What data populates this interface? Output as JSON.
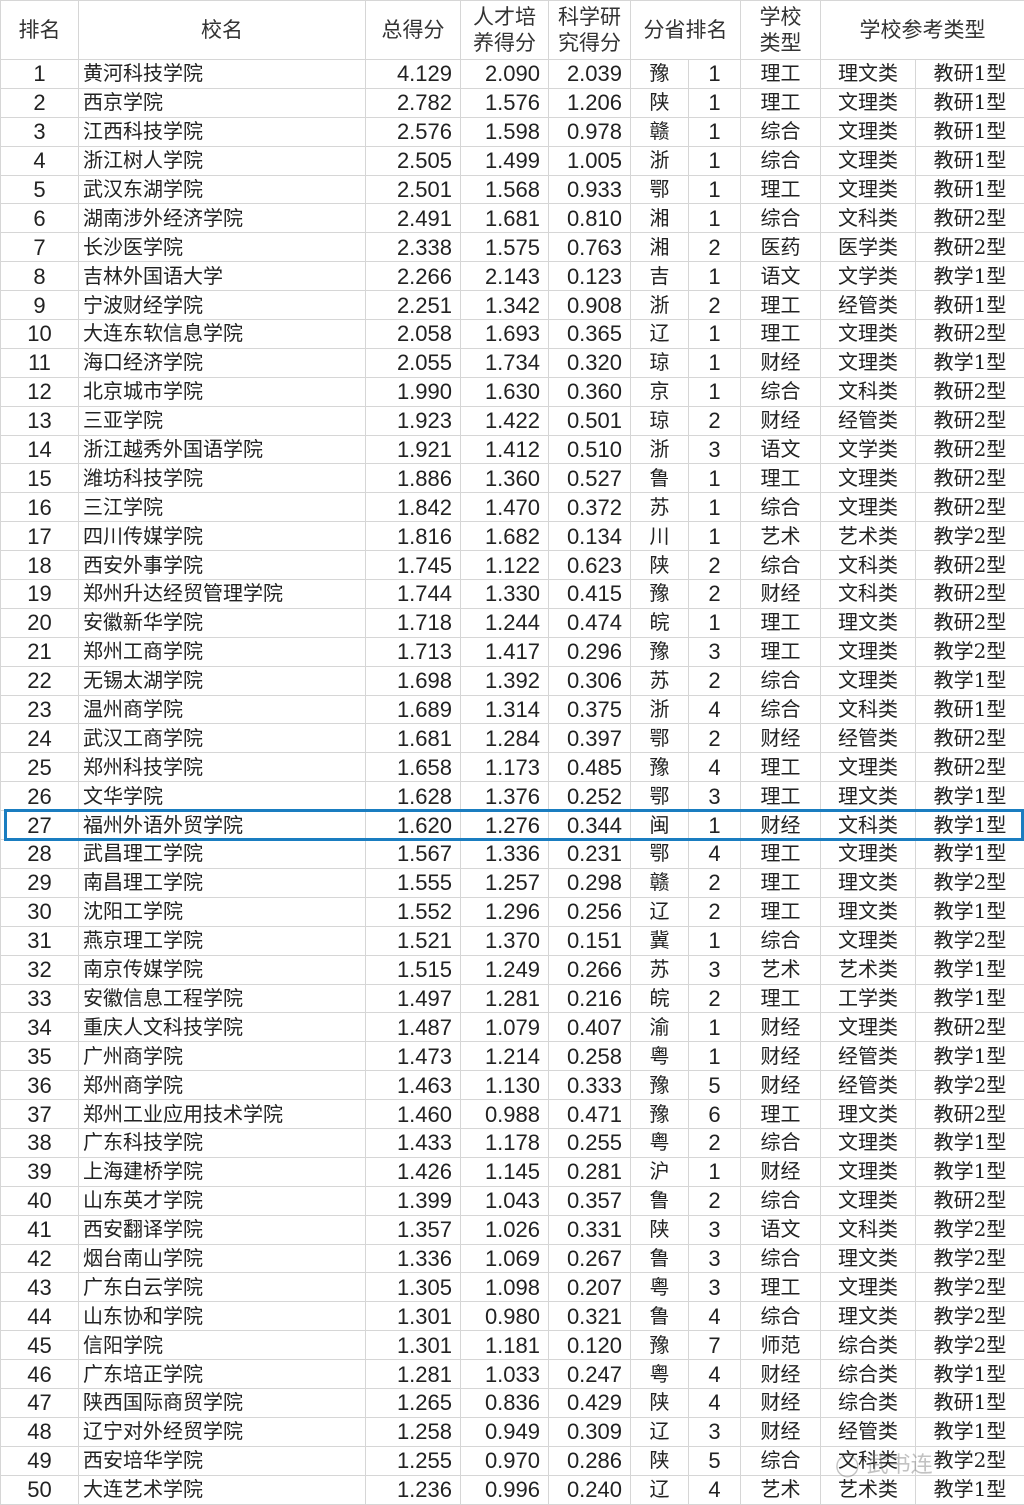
{
  "header": {
    "rank": "排名",
    "name": "校名",
    "total": "总得分",
    "talent": "人才培养得分",
    "research": "科学研究得分",
    "province_rank": "分省排名",
    "school_type": "学校类型",
    "ref_type": "学校参考类型"
  },
  "highlight_rank": 27,
  "highlight_color": "#1a7dc0",
  "watermark": "武书连",
  "rows": [
    [
      "1",
      "黄河科技学院",
      "4.129",
      "2.090",
      "2.039",
      "豫",
      "1",
      "理工",
      "理文类",
      "教研1型"
    ],
    [
      "2",
      "西京学院",
      "2.782",
      "1.576",
      "1.206",
      "陕",
      "1",
      "理工",
      "文理类",
      "教研1型"
    ],
    [
      "3",
      "江西科技学院",
      "2.576",
      "1.598",
      "0.978",
      "赣",
      "1",
      "综合",
      "文理类",
      "教研1型"
    ],
    [
      "4",
      "浙江树人学院",
      "2.505",
      "1.499",
      "1.005",
      "浙",
      "1",
      "综合",
      "文理类",
      "教研1型"
    ],
    [
      "5",
      "武汉东湖学院",
      "2.501",
      "1.568",
      "0.933",
      "鄂",
      "1",
      "理工",
      "文理类",
      "教研1型"
    ],
    [
      "6",
      "湖南涉外经济学院",
      "2.491",
      "1.681",
      "0.810",
      "湘",
      "1",
      "综合",
      "文科类",
      "教研2型"
    ],
    [
      "7",
      "长沙医学院",
      "2.338",
      "1.575",
      "0.763",
      "湘",
      "2",
      "医药",
      "医学类",
      "教研2型"
    ],
    [
      "8",
      "吉林外国语大学",
      "2.266",
      "2.143",
      "0.123",
      "吉",
      "1",
      "语文",
      "文学类",
      "教学1型"
    ],
    [
      "9",
      "宁波财经学院",
      "2.251",
      "1.342",
      "0.908",
      "浙",
      "2",
      "理工",
      "经管类",
      "教研1型"
    ],
    [
      "10",
      "大连东软信息学院",
      "2.058",
      "1.693",
      "0.365",
      "辽",
      "1",
      "理工",
      "文理类",
      "教研2型"
    ],
    [
      "11",
      "海口经济学院",
      "2.055",
      "1.734",
      "0.320",
      "琼",
      "1",
      "财经",
      "文理类",
      "教学1型"
    ],
    [
      "12",
      "北京城市学院",
      "1.990",
      "1.630",
      "0.360",
      "京",
      "1",
      "综合",
      "文科类",
      "教研2型"
    ],
    [
      "13",
      "三亚学院",
      "1.923",
      "1.422",
      "0.501",
      "琼",
      "2",
      "财经",
      "经管类",
      "教研2型"
    ],
    [
      "14",
      "浙江越秀外国语学院",
      "1.921",
      "1.412",
      "0.510",
      "浙",
      "3",
      "语文",
      "文学类",
      "教研2型"
    ],
    [
      "15",
      "潍坊科技学院",
      "1.886",
      "1.360",
      "0.527",
      "鲁",
      "1",
      "理工",
      "文理类",
      "教研2型"
    ],
    [
      "16",
      "三江学院",
      "1.842",
      "1.470",
      "0.372",
      "苏",
      "1",
      "综合",
      "文理类",
      "教研2型"
    ],
    [
      "17",
      "四川传媒学院",
      "1.816",
      "1.682",
      "0.134",
      "川",
      "1",
      "艺术",
      "艺术类",
      "教学2型"
    ],
    [
      "18",
      "西安外事学院",
      "1.745",
      "1.122",
      "0.623",
      "陕",
      "2",
      "综合",
      "文科类",
      "教研2型"
    ],
    [
      "19",
      "郑州升达经贸管理学院",
      "1.744",
      "1.330",
      "0.415",
      "豫",
      "2",
      "财经",
      "文科类",
      "教研2型"
    ],
    [
      "20",
      "安徽新华学院",
      "1.718",
      "1.244",
      "0.474",
      "皖",
      "1",
      "理工",
      "理文类",
      "教研2型"
    ],
    [
      "21",
      "郑州工商学院",
      "1.713",
      "1.417",
      "0.296",
      "豫",
      "3",
      "理工",
      "文理类",
      "教学2型"
    ],
    [
      "22",
      "无锡太湖学院",
      "1.698",
      "1.392",
      "0.306",
      "苏",
      "2",
      "综合",
      "文理类",
      "教学1型"
    ],
    [
      "23",
      "温州商学院",
      "1.689",
      "1.314",
      "0.375",
      "浙",
      "4",
      "综合",
      "文科类",
      "教研1型"
    ],
    [
      "24",
      "武汉工商学院",
      "1.681",
      "1.284",
      "0.397",
      "鄂",
      "2",
      "财经",
      "经管类",
      "教研2型"
    ],
    [
      "25",
      "郑州科技学院",
      "1.658",
      "1.173",
      "0.485",
      "豫",
      "4",
      "理工",
      "文理类",
      "教研2型"
    ],
    [
      "26",
      "文华学院",
      "1.628",
      "1.376",
      "0.252",
      "鄂",
      "3",
      "理工",
      "理文类",
      "教学1型"
    ],
    [
      "27",
      "福州外语外贸学院",
      "1.620",
      "1.276",
      "0.344",
      "闽",
      "1",
      "财经",
      "文科类",
      "教学1型"
    ],
    [
      "28",
      "武昌理工学院",
      "1.567",
      "1.336",
      "0.231",
      "鄂",
      "4",
      "理工",
      "文理类",
      "教学1型"
    ],
    [
      "29",
      "南昌理工学院",
      "1.555",
      "1.257",
      "0.298",
      "赣",
      "2",
      "理工",
      "理文类",
      "教学2型"
    ],
    [
      "30",
      "沈阳工学院",
      "1.552",
      "1.296",
      "0.256",
      "辽",
      "2",
      "理工",
      "理文类",
      "教学1型"
    ],
    [
      "31",
      "燕京理工学院",
      "1.521",
      "1.370",
      "0.151",
      "冀",
      "1",
      "综合",
      "文理类",
      "教学2型"
    ],
    [
      "32",
      "南京传媒学院",
      "1.515",
      "1.249",
      "0.266",
      "苏",
      "3",
      "艺术",
      "艺术类",
      "教学1型"
    ],
    [
      "33",
      "安徽信息工程学院",
      "1.497",
      "1.281",
      "0.216",
      "皖",
      "2",
      "理工",
      "工学类",
      "教学1型"
    ],
    [
      "34",
      "重庆人文科技学院",
      "1.487",
      "1.079",
      "0.407",
      "渝",
      "1",
      "财经",
      "文理类",
      "教研2型"
    ],
    [
      "35",
      "广州商学院",
      "1.473",
      "1.214",
      "0.258",
      "粤",
      "1",
      "财经",
      "经管类",
      "教学1型"
    ],
    [
      "36",
      "郑州商学院",
      "1.463",
      "1.130",
      "0.333",
      "豫",
      "5",
      "财经",
      "经管类",
      "教学2型"
    ],
    [
      "37",
      "郑州工业应用技术学院",
      "1.460",
      "0.988",
      "0.471",
      "豫",
      "6",
      "理工",
      "理文类",
      "教研2型"
    ],
    [
      "38",
      "广东科技学院",
      "1.433",
      "1.178",
      "0.255",
      "粤",
      "2",
      "综合",
      "文理类",
      "教学1型"
    ],
    [
      "39",
      "上海建桥学院",
      "1.426",
      "1.145",
      "0.281",
      "沪",
      "1",
      "财经",
      "文理类",
      "教学1型"
    ],
    [
      "40",
      "山东英才学院",
      "1.399",
      "1.043",
      "0.357",
      "鲁",
      "2",
      "综合",
      "文理类",
      "教研2型"
    ],
    [
      "41",
      "西安翻译学院",
      "1.357",
      "1.026",
      "0.331",
      "陕",
      "3",
      "语文",
      "文科类",
      "教学2型"
    ],
    [
      "42",
      "烟台南山学院",
      "1.336",
      "1.069",
      "0.267",
      "鲁",
      "3",
      "综合",
      "理文类",
      "教学2型"
    ],
    [
      "43",
      "广东白云学院",
      "1.305",
      "1.098",
      "0.207",
      "粤",
      "3",
      "理工",
      "文理类",
      "教学2型"
    ],
    [
      "44",
      "山东协和学院",
      "1.301",
      "0.980",
      "0.321",
      "鲁",
      "4",
      "综合",
      "理文类",
      "教学2型"
    ],
    [
      "45",
      "信阳学院",
      "1.301",
      "1.181",
      "0.120",
      "豫",
      "7",
      "师范",
      "综合类",
      "教学2型"
    ],
    [
      "46",
      "广东培正学院",
      "1.281",
      "1.033",
      "0.247",
      "粤",
      "4",
      "财经",
      "综合类",
      "教学1型"
    ],
    [
      "47",
      "陕西国际商贸学院",
      "1.265",
      "0.836",
      "0.429",
      "陕",
      "4",
      "财经",
      "综合类",
      "教研1型"
    ],
    [
      "48",
      "辽宁对外经贸学院",
      "1.258",
      "0.949",
      "0.309",
      "辽",
      "3",
      "财经",
      "经管类",
      "教学1型"
    ],
    [
      "49",
      "西安培华学院",
      "1.255",
      "0.970",
      "0.286",
      "陕",
      "5",
      "综合",
      "文科类",
      "教学2型"
    ],
    [
      "50",
      "大连艺术学院",
      "1.236",
      "0.996",
      "0.240",
      "辽",
      "4",
      "艺术",
      "艺术类",
      "教学1型"
    ]
  ]
}
